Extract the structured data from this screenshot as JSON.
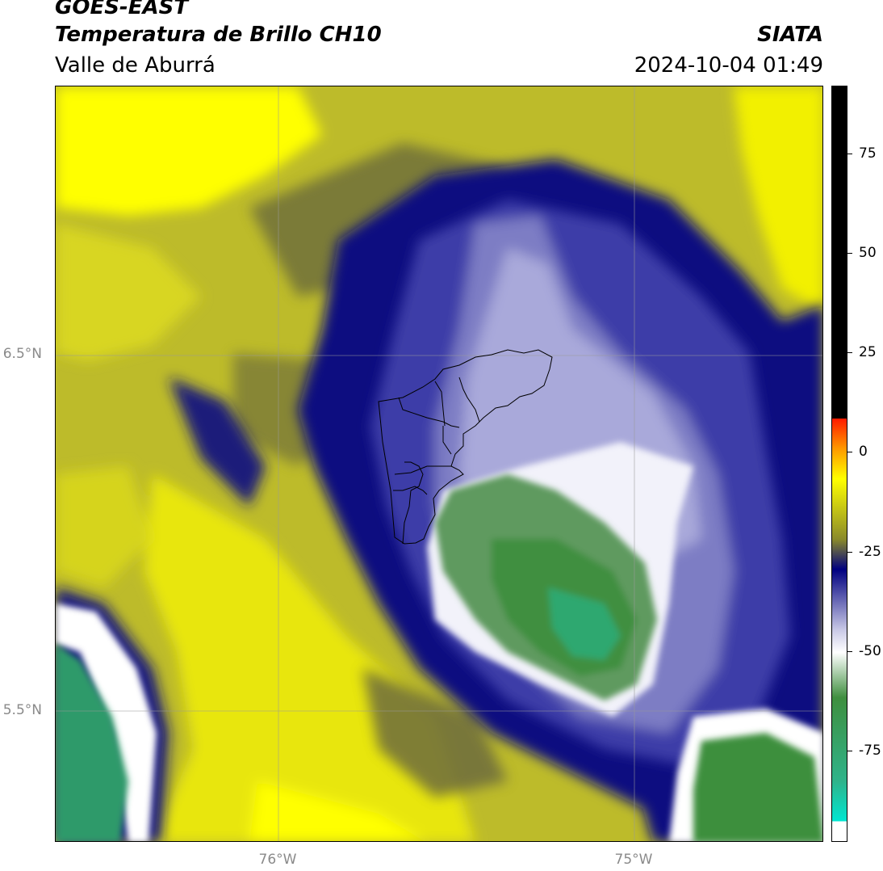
{
  "header": {
    "title_line1": "GOES-EAST",
    "title_line2": "Temperatura de Brillo CH10",
    "region": "Valle de Aburrá",
    "agency": "SIATA",
    "datetime": "2024-10-04 01:49"
  },
  "map": {
    "lat_labels": [
      "6.5°N",
      "5.5°N"
    ],
    "lon_labels": [
      "76°W",
      "75°W"
    ]
  },
  "colorbar": {
    "ticks": [
      "75",
      "50",
      "25",
      "0",
      "-25",
      "-50",
      "-75"
    ],
    "colors": {
      "black": "#000000",
      "red": "#ff1a00",
      "orange": "#ff9900",
      "yellow": "#ffff00",
      "olive": "#8a8a2a",
      "navy": "#000080",
      "lavender": "#c8c8e6",
      "white": "#ffffff",
      "green": "#3f8f3f",
      "teal": "#2fb38a",
      "cyan": "#00e6d2"
    }
  }
}
